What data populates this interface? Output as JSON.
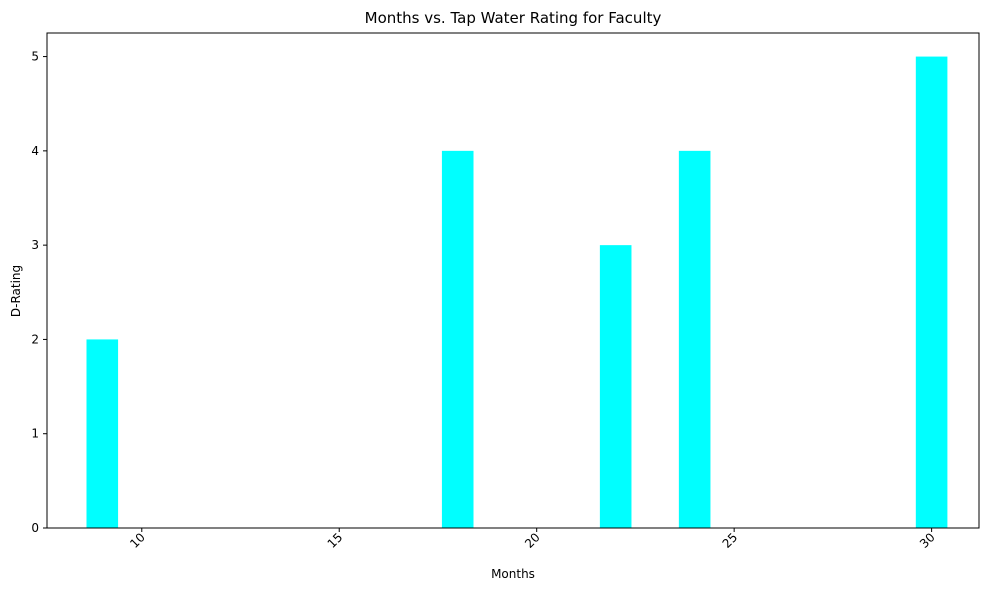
{
  "chart_data": {
    "type": "bar",
    "title": "Months vs. Tap Water Rating for Faculty",
    "xlabel": "Months",
    "ylabel": "D-Rating",
    "x": [
      9,
      18,
      22,
      24,
      30
    ],
    "values": [
      2,
      4,
      3,
      4,
      5
    ],
    "bar_color": "#00ffff",
    "xlim": [
      7.6,
      31.2
    ],
    "ylim": [
      0,
      5.25
    ],
    "xticks": [
      10,
      15,
      20,
      25,
      30
    ],
    "yticks": [
      0,
      1,
      2,
      3,
      4,
      5
    ],
    "grid": false,
    "legend": "none"
  }
}
